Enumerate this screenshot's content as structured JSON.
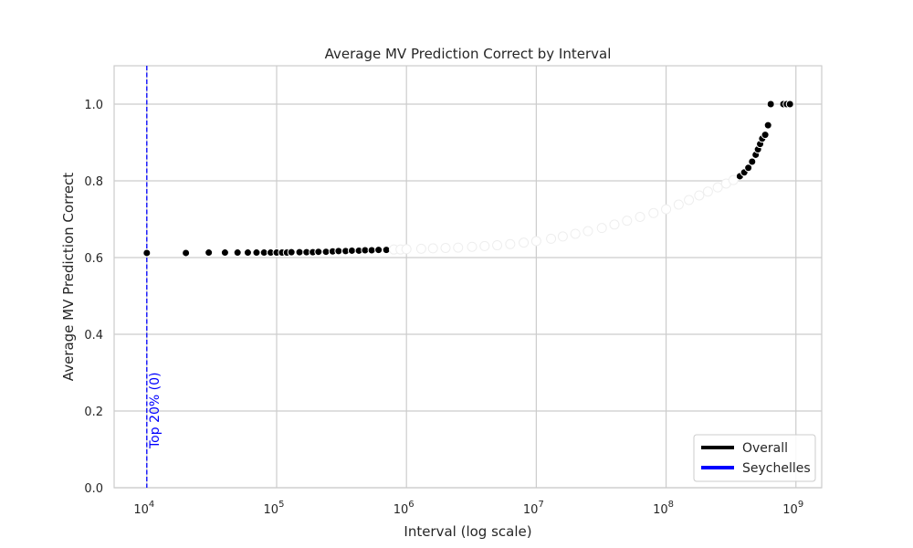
{
  "chart_data": {
    "type": "scatter",
    "title": "Average MV Prediction Correct by Interval",
    "xlabel": "Interval (log scale)",
    "ylabel": "Average MV Prediction Correct",
    "x_scale": "log",
    "xlim": [
      5600,
      1580000000
    ],
    "ylim": [
      0,
      1.1
    ],
    "x_ticks": [
      10000,
      100000,
      1000000,
      10000000,
      100000000,
      1000000000
    ],
    "x_tick_base": "10",
    "x_tick_exponents": [
      "4",
      "5",
      "6",
      "7",
      "8",
      "9"
    ],
    "y_ticks": [
      0.0,
      0.2,
      0.4,
      0.6,
      0.8,
      1.0
    ],
    "y_tick_labels": [
      "0.0",
      "0.2",
      "0.4",
      "0.6",
      "0.8",
      "1.0"
    ],
    "grid": true,
    "legend_position": "bottom-right",
    "colors": {
      "overall": "#000000",
      "seychelles": "#0000ff",
      "grid": "#cccccc",
      "marker_edge": "#ffffff"
    },
    "series": [
      {
        "name": "Overall",
        "marker": "circle",
        "points": [
          [
            10000,
            0.612
          ],
          [
            20000,
            0.612
          ],
          [
            30000,
            0.613
          ],
          [
            40000,
            0.613
          ],
          [
            50000,
            0.613
          ],
          [
            60000,
            0.613
          ],
          [
            70000,
            0.613
          ],
          [
            80000,
            0.613
          ],
          [
            90000,
            0.613
          ],
          [
            100000,
            0.613
          ],
          [
            110000,
            0.613
          ],
          [
            120000,
            0.613
          ],
          [
            130000,
            0.614
          ],
          [
            150000,
            0.614
          ],
          [
            170000,
            0.614
          ],
          [
            190000,
            0.614
          ],
          [
            210000,
            0.615
          ],
          [
            240000,
            0.615
          ],
          [
            270000,
            0.616
          ],
          [
            300000,
            0.617
          ],
          [
            340000,
            0.617
          ],
          [
            380000,
            0.618
          ],
          [
            430000,
            0.618
          ],
          [
            480000,
            0.619
          ],
          [
            540000,
            0.619
          ],
          [
            610000,
            0.62
          ],
          [
            700000,
            0.62
          ],
          [
            800000,
            0.621
          ],
          [
            900000,
            0.621
          ],
          [
            1000000,
            0.622
          ],
          [
            1300000,
            0.623
          ],
          [
            1600000,
            0.624
          ],
          [
            2000000,
            0.625
          ],
          [
            2500000,
            0.626
          ],
          [
            3200000,
            0.628
          ],
          [
            4000000,
            0.63
          ],
          [
            5000000,
            0.632
          ],
          [
            6300000,
            0.635
          ],
          [
            8000000,
            0.639
          ],
          [
            10000000,
            0.643
          ],
          [
            13000000,
            0.649
          ],
          [
            16000000,
            0.655
          ],
          [
            20000000,
            0.662
          ],
          [
            25000000,
            0.669
          ],
          [
            32000000,
            0.677
          ],
          [
            40000000,
            0.686
          ],
          [
            50000000,
            0.696
          ],
          [
            63000000,
            0.706
          ],
          [
            80000000,
            0.716
          ],
          [
            100000000,
            0.726
          ],
          [
            125000000,
            0.738
          ],
          [
            150000000,
            0.75
          ],
          [
            180000000,
            0.762
          ],
          [
            210000000,
            0.772
          ],
          [
            250000000,
            0.783
          ],
          [
            290000000,
            0.793
          ],
          [
            330000000,
            0.802
          ],
          [
            370000000,
            0.812
          ],
          [
            400000000,
            0.822
          ],
          [
            430000000,
            0.834
          ],
          [
            460000000,
            0.85
          ],
          [
            490000000,
            0.868
          ],
          [
            510000000,
            0.882
          ],
          [
            530000000,
            0.896
          ],
          [
            550000000,
            0.91
          ],
          [
            580000000,
            0.92
          ],
          [
            610000000,
            0.945
          ],
          [
            640000000,
            1.0
          ],
          [
            800000000,
            1.0
          ],
          [
            850000000,
            1.0
          ],
          [
            900000000,
            1.0
          ]
        ]
      },
      {
        "name": "Seychelles",
        "marker": "none",
        "points": []
      }
    ],
    "vertical_lines": [
      {
        "x": 10000,
        "style": "dashed",
        "color": "#0000ff",
        "label": "Top 20% (0)"
      }
    ]
  }
}
